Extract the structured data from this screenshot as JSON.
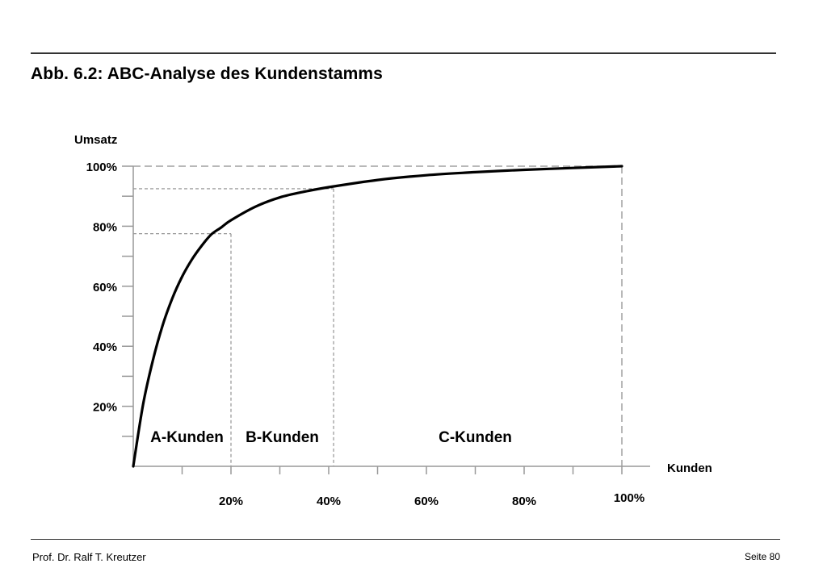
{
  "title": "Abb. 6.2: ABC-Analyse des Kundenstamms",
  "footer": {
    "author": "Prof. Dr. Ralf T. Kreutzer",
    "page": "Seite 80"
  },
  "chart_data": {
    "type": "line",
    "title": "Abb. 6.2: ABC-Analyse des Kundenstamms",
    "xlabel": "Kunden",
    "ylabel": "Umsatz",
    "xlim": [
      0,
      100
    ],
    "ylim": [
      0,
      100
    ],
    "x_ticks": [
      10,
      20,
      30,
      40,
      50,
      60,
      70,
      80,
      90,
      100
    ],
    "x_tick_labels": [
      {
        "value": 20,
        "label": "20%"
      },
      {
        "value": 40,
        "label": "40%"
      },
      {
        "value": 60,
        "label": "60%"
      },
      {
        "value": 80,
        "label": "80%"
      },
      {
        "value": 100,
        "label": "100%"
      }
    ],
    "y_ticks": [
      10,
      20,
      30,
      40,
      50,
      60,
      70,
      80,
      90,
      100
    ],
    "y_tick_labels": [
      {
        "value": 20,
        "label": "20%"
      },
      {
        "value": 40,
        "label": "40%"
      },
      {
        "value": 60,
        "label": "60%"
      },
      {
        "value": 80,
        "label": "80%"
      },
      {
        "value": 100,
        "label": "100%"
      }
    ],
    "series": [
      {
        "x": [
          0,
          2,
          4,
          6,
          8,
          10,
          12,
          14,
          16,
          18,
          20,
          25,
          30,
          35,
          40,
          50,
          60,
          70,
          80,
          90,
          100
        ],
        "y": [
          0,
          20.5,
          35.2,
          46.9,
          56.0,
          63.2,
          68.9,
          73.5,
          77.3,
          79.6,
          82.0,
          86.5,
          89.6,
          91.5,
          93.0,
          95.4,
          97.0,
          98.0,
          98.8,
          99.4,
          100
        ]
      }
    ],
    "reference_lines": [
      {
        "x": 20,
        "y": 77.5
      },
      {
        "x": 41,
        "y": 92.5
      },
      {
        "x": 100,
        "y": 100
      }
    ],
    "segments": [
      {
        "label": "A-Kunden",
        "x": 11
      },
      {
        "label": "B-Kunden",
        "x": 30.5
      },
      {
        "label": "C-Kunden",
        "x": 70
      }
    ],
    "grid": false,
    "legend": "none"
  }
}
